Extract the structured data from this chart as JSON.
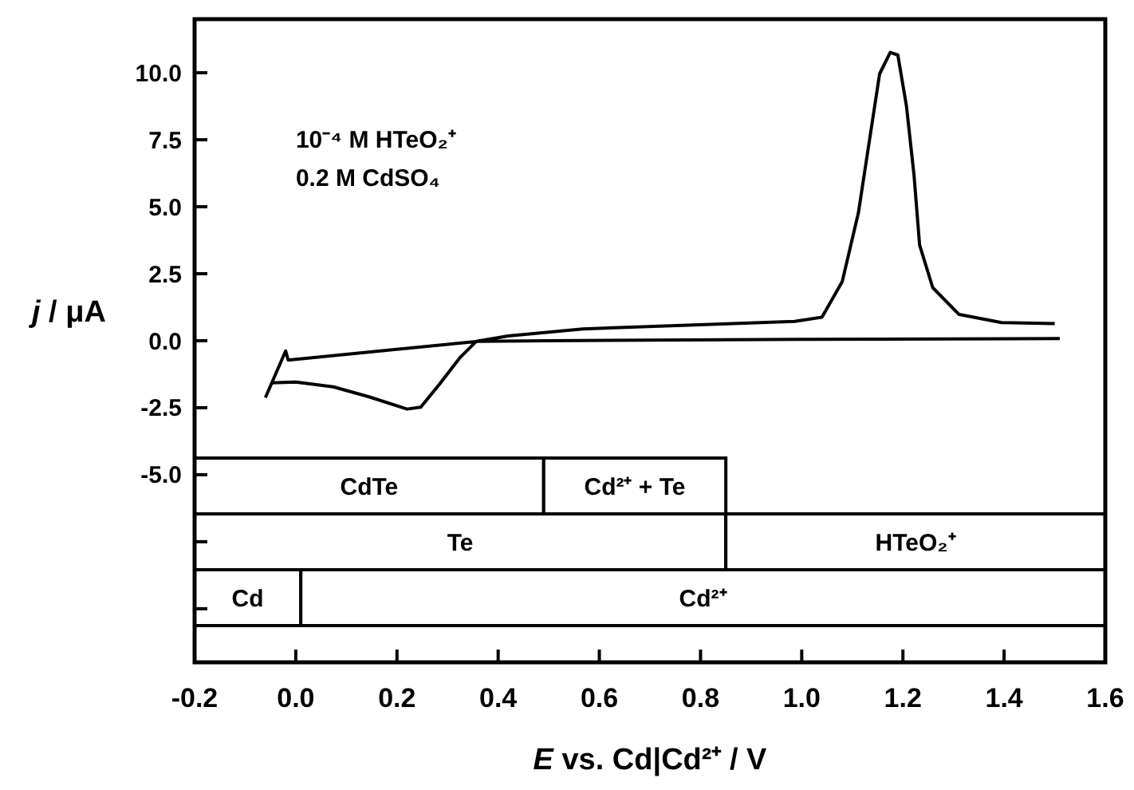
{
  "chart_data": {
    "type": "line",
    "xlabel": "E vs. Cd|Cd²⁺ / V",
    "ylabel": "j / μA",
    "xlim": [
      -0.2,
      1.6
    ],
    "ylim": [
      -12,
      12
    ],
    "xticks": [
      {
        "value": -0.2,
        "label": "-0.2"
      },
      {
        "value": 0,
        "label": "0.0"
      },
      {
        "value": 0.2,
        "label": "0.2"
      },
      {
        "value": 0.4,
        "label": "0.4"
      },
      {
        "value": 0.6,
        "label": "0.6"
      },
      {
        "value": 0.8,
        "label": "0.8"
      },
      {
        "value": 1,
        "label": "1.0"
      },
      {
        "value": 1.2,
        "label": "1.2"
      },
      {
        "value": 1.4,
        "label": "1.4"
      },
      {
        "value": 1.6,
        "label": "1.6"
      }
    ],
    "yticks": [
      {
        "value": 10,
        "label": "10.0"
      },
      {
        "value": 7.5,
        "label": "7.5"
      },
      {
        "value": 5,
        "label": "5.0"
      },
      {
        "value": 2.5,
        "label": "2.5"
      },
      {
        "value": 0,
        "label": "0.0"
      },
      {
        "value": -2.5,
        "label": "-2.5"
      },
      {
        "value": -5,
        "label": "-5.0"
      },
      {
        "value": -7.5,
        "label": null
      },
      {
        "value": -10,
        "label": null
      }
    ],
    "annotations": [
      "10⁻⁴ M HTeO₂⁺",
      "0.2 M CdSO₄"
    ],
    "bands": [
      {
        "axis": "x",
        "from": -0.2,
        "to": 0.49,
        "label": "CdTe",
        "color": "#000000"
      },
      {
        "axis": "x",
        "from": 0.49,
        "to": 0.85,
        "label": "Cd²⁺ + Te",
        "color": "#000000"
      },
      {
        "axis": "x",
        "from": -0.2,
        "to": 0.85,
        "label": "Te",
        "color": "#000000"
      },
      {
        "axis": "x",
        "from": 0.85,
        "to": 1.6,
        "label": "HTeO₂⁺",
        "color": "#000000"
      },
      {
        "axis": "x",
        "from": -0.2,
        "to": 0.01,
        "label": "Cd",
        "color": "#000000"
      },
      {
        "axis": "x",
        "from": 0.01,
        "to": 1.6,
        "label": "Cd²⁺",
        "color": "#000000"
      }
    ],
    "series": [
      {
        "color": "#000000",
        "x": [
          1.51,
          1.0,
          0.5,
          0.36,
          -0.015,
          -0.02,
          -0.06,
          null,
          -0.047,
          0.0,
          0.074,
          0.146,
          0.22,
          0.247,
          0.284,
          0.325,
          0.357,
          0.42,
          0.567,
          0.775,
          0.986,
          1.04,
          1.08,
          1.112,
          1.133,
          1.154,
          1.175,
          1.19,
          1.207,
          1.222,
          1.233,
          1.259,
          1.311,
          1.395,
          1.5
        ],
        "values": [
          0.08,
          0.05,
          0.0,
          -0.02,
          -0.72,
          -0.38,
          -2.12,
          null,
          -1.57,
          -1.54,
          -1.72,
          -2.1,
          -2.55,
          -2.48,
          -1.62,
          -0.62,
          -0.02,
          0.18,
          0.44,
          0.58,
          0.72,
          0.88,
          2.2,
          4.77,
          7.37,
          9.96,
          10.76,
          10.66,
          8.76,
          6.17,
          3.57,
          1.98,
          0.98,
          0.68,
          0.64
        ]
      }
    ]
  }
}
